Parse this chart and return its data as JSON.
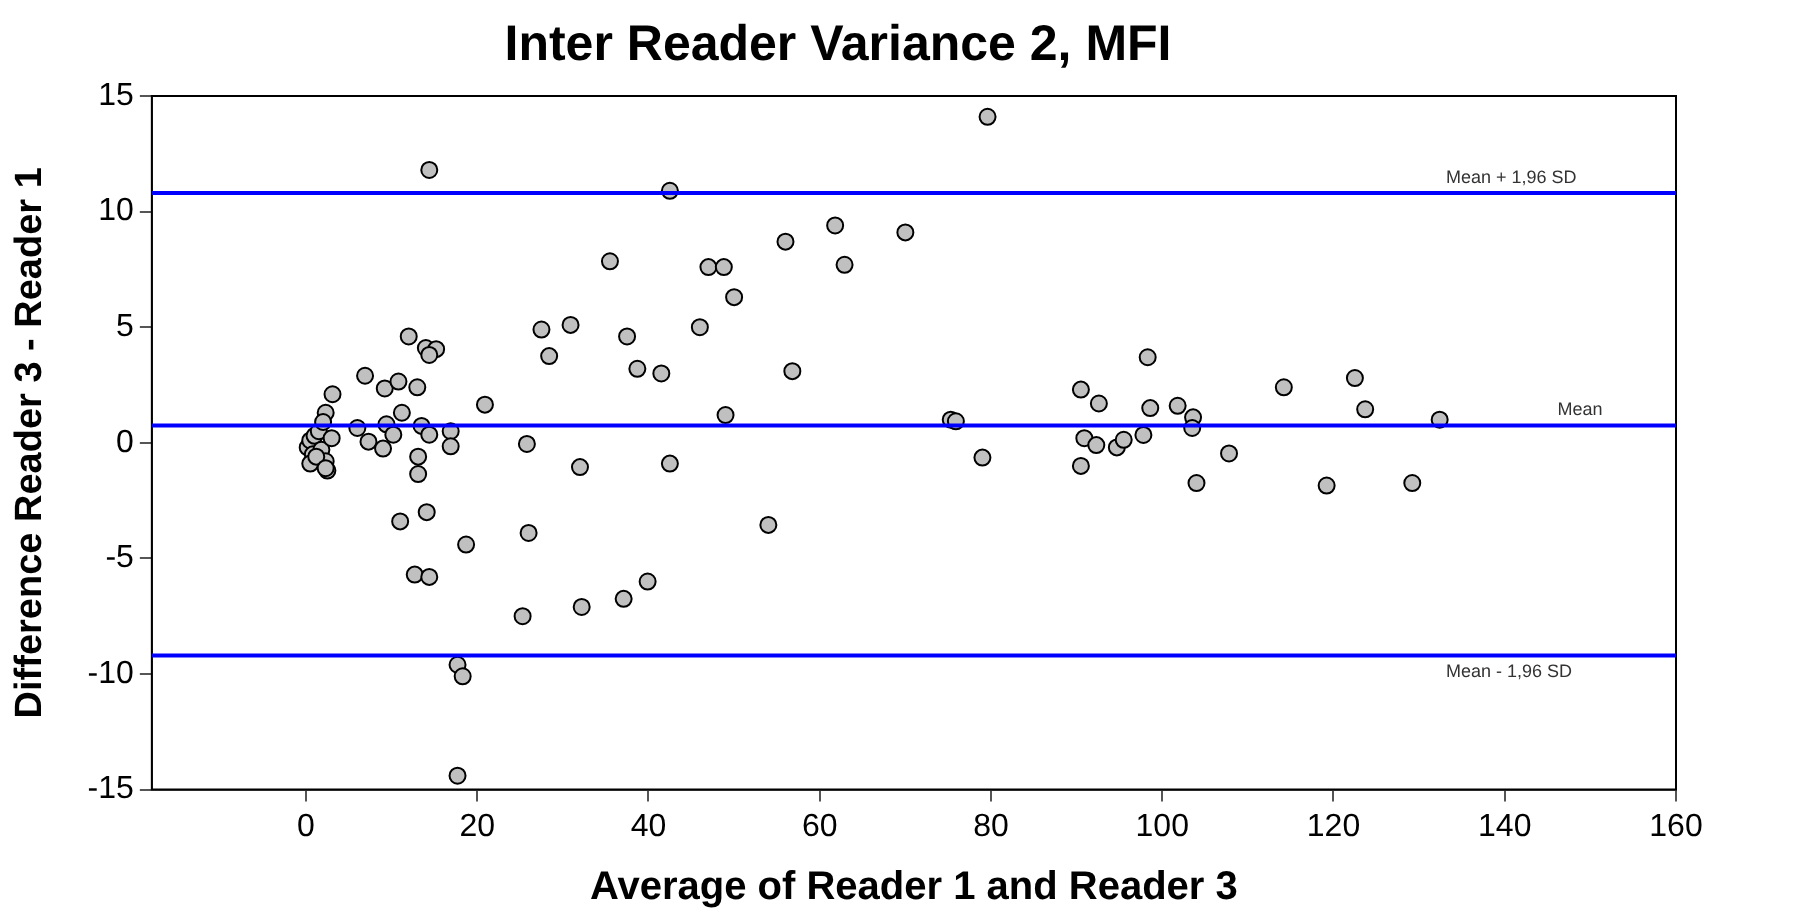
{
  "chart_data": {
    "type": "scatter",
    "title": "Inter Reader Variance 2, MFI",
    "xlabel": "Average of Reader 1 and Reader 3",
    "ylabel": "Difference Reader 3 - Reader 1",
    "xlim": [
      -18,
      160
    ],
    "xticks": [
      0,
      20,
      40,
      60,
      80,
      100,
      120,
      140,
      160
    ],
    "ylim": [
      -15,
      15
    ],
    "yticks": [
      -15,
      -10,
      -5,
      0,
      5,
      10,
      15
    ],
    "grid": false,
    "legend": false,
    "marker": "circle",
    "ref_lines": [
      {
        "axis": "y",
        "value": 10.8,
        "label": "Mean + 1,96 SD",
        "color": "#0000ff"
      },
      {
        "axis": "y",
        "value": 0.75,
        "label": "Mean",
        "color": "#0000ff"
      },
      {
        "axis": "y",
        "value": -9.2,
        "label": "Mean - 1,96 SD",
        "color": "#0000ff"
      }
    ],
    "series": [
      {
        "color": "#c0c0c0",
        "x": [
          14.4,
          42.5,
          61.8,
          70.0,
          56.0,
          35.5,
          47.0,
          48.8,
          62.9,
          50.0,
          27.5,
          30.9,
          37.5,
          46.0,
          28.4,
          38.7,
          41.5,
          56.8,
          49.0,
          20.9,
          12.0,
          14.0,
          15.2,
          14.4,
          6.9,
          9.2,
          10.8,
          13.0,
          3.1,
          2.3,
          11.2,
          6.0,
          9.4,
          13.5,
          16.9,
          10.2,
          14.4,
          0.2,
          0.5,
          0.8,
          1.0,
          1.5,
          1.8,
          2.0,
          2.3,
          2.5,
          3.0,
          0.5,
          1.2,
          2.3,
          7.3,
          9.0,
          13.1,
          13.1,
          16.9,
          25.8,
          32.0,
          42.5,
          75.3,
          11.0,
          14.1,
          18.7,
          26.0,
          54.0,
          12.7,
          14.4,
          25.3,
          32.2,
          37.1,
          39.9,
          17.7,
          18.3,
          17.7,
          79.6,
          98.3,
          90.5,
          92.6,
          98.6,
          101.8,
          103.6,
          103.5,
          114.2,
          122.5,
          123.7,
          132.4,
          75.9,
          79.0,
          90.5,
          90.9,
          92.3,
          94.7,
          95.5,
          97.8,
          107.8,
          104.0,
          119.2,
          129.2
        ],
        "values": [
          11.8,
          10.9,
          9.4,
          9.1,
          8.7,
          7.85,
          7.6,
          7.6,
          7.7,
          6.3,
          4.9,
          5.1,
          4.6,
          5.0,
          3.75,
          3.2,
          3.0,
          3.1,
          1.2,
          1.65,
          4.6,
          4.1,
          4.05,
          3.8,
          2.9,
          2.35,
          2.65,
          2.4,
          2.1,
          1.3,
          1.3,
          0.64,
          0.8,
          0.73,
          0.5,
          0.35,
          0.35,
          -0.2,
          0.1,
          -0.5,
          0.3,
          0.5,
          -0.3,
          0.9,
          -0.8,
          -1.2,
          0.2,
          -0.9,
          -0.6,
          -1.1,
          0.05,
          -0.25,
          -0.6,
          -1.35,
          -0.15,
          -0.05,
          -1.05,
          -0.9,
          1.0,
          -3.4,
          -3.0,
          -4.4,
          -3.9,
          -3.55,
          -5.7,
          -5.8,
          -7.5,
          -7.1,
          -6.75,
          -6.0,
          -9.6,
          -10.1,
          -14.4,
          14.1,
          3.7,
          2.3,
          1.7,
          1.5,
          1.6,
          1.1,
          0.64,
          2.4,
          2.8,
          1.45,
          1.0,
          0.93,
          -0.64,
          -1.0,
          0.2,
          -0.1,
          -0.2,
          0.13,
          0.34,
          -0.46,
          -1.74,
          -1.85,
          -1.74
        ]
      }
    ]
  }
}
